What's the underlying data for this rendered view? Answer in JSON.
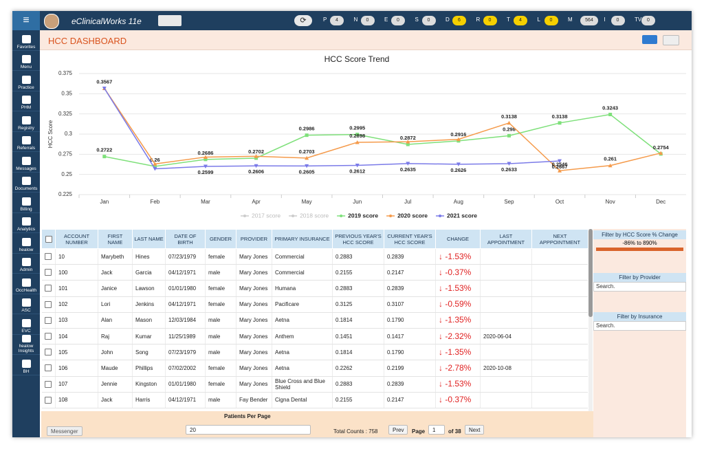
{
  "topbar": {
    "app_name": "eClinicalWorks 11e",
    "counters": [
      {
        "label": "P",
        "count": "4",
        "color": "#dddddd"
      },
      {
        "label": "N",
        "count": "0",
        "color": "#dddddd"
      },
      {
        "label": "E",
        "count": "0",
        "color": "#dddddd"
      },
      {
        "label": "S",
        "count": "0",
        "color": "#dddddd"
      },
      {
        "label": "D",
        "count": "6",
        "color": "#f5d000"
      },
      {
        "label": "R",
        "count": "0",
        "color": "#f5d000"
      },
      {
        "label": "T",
        "count": "4",
        "color": "#f5d000"
      },
      {
        "label": "L",
        "count": "0",
        "color": "#f5d000"
      },
      {
        "label": "M",
        "count": "564",
        "color": "#dddddd"
      },
      {
        "label": "I",
        "count": "0",
        "color": "#dddddd"
      },
      {
        "label": "TV",
        "count": "0",
        "color": "#dddddd"
      }
    ]
  },
  "sidebar": [
    "Favorites",
    "Menu",
    "Practice",
    "PHM",
    "Registry",
    "Referrals",
    "Messages",
    "Documents",
    "Billing",
    "Analytics",
    "healow",
    "Admin",
    "OccHealth",
    "ASC",
    "EVC",
    "healow Insights",
    "BH"
  ],
  "header": {
    "title": "HCC DASHBOARD"
  },
  "chart": {
    "type": "line",
    "title": "HCC Score Trend",
    "y_label": "HCC Score",
    "categories": [
      "Jan",
      "Feb",
      "Mar",
      "Apr",
      "May",
      "Jun",
      "Jul",
      "Aug",
      "Sep",
      "Oct",
      "Nov",
      "Dec"
    ],
    "ylim": [
      0.225,
      0.375
    ],
    "yticks": [
      0.375,
      0.35,
      0.325,
      0.3,
      0.275,
      0.25,
      0.225
    ],
    "series": [
      {
        "name": "2017 score",
        "color": "#cccccc",
        "visible": false,
        "values": [
          null,
          null,
          null,
          null,
          null,
          null,
          null,
          null,
          null,
          null,
          null,
          null
        ]
      },
      {
        "name": "2018 score",
        "color": "#cccccc",
        "visible": false,
        "values": [
          null,
          null,
          null,
          null,
          null,
          null,
          null,
          null,
          null,
          null,
          null,
          null
        ]
      },
      {
        "name": "2019 score",
        "color": "#7ee07a",
        "marker": "square",
        "visible": true,
        "values": [
          0.2722,
          0.26,
          0.2686,
          0.2702,
          0.2986,
          0.2995,
          0.2872,
          0.2916,
          0.298,
          0.3138,
          0.3243,
          0.2754
        ],
        "value_labels": [
          "0.2722",
          "0.26",
          "0.2686",
          "0.2702",
          "0.2986",
          "0.2995",
          "0.2872",
          "0.2916",
          "0.298",
          "0.3138",
          "0.3243",
          "0.2754"
        ]
      },
      {
        "name": "2020 score",
        "color": "#f59a4a",
        "marker": "triangle-up",
        "visible": true,
        "values": [
          0.3567,
          0.263,
          0.2715,
          0.2725,
          0.2703,
          0.2898,
          0.2905,
          0.2935,
          0.3138,
          0.2546,
          0.261,
          0.2765
        ],
        "value_labels": [
          "0.3567",
          null,
          null,
          null,
          "0.2703",
          "0.2898",
          null,
          null,
          "0.3138",
          "0.2546",
          "0.261",
          null
        ]
      },
      {
        "name": "2021 score",
        "color": "#7a7ae8",
        "marker": "triangle-down",
        "visible": true,
        "values": [
          0.3567,
          0.257,
          0.2599,
          0.2606,
          0.2605,
          0.2612,
          0.2635,
          0.2626,
          0.2633,
          0.2667,
          null,
          null
        ],
        "value_labels": [
          null,
          null,
          "0.2599",
          "0.2606",
          "0.2605",
          "0.2612",
          "0.2635",
          "0.2626",
          "0.2633",
          "0.2667",
          null,
          null
        ]
      }
    ]
  },
  "table": {
    "columns": [
      "ACCOUNT NUMBER",
      "FIRST NAME",
      "LAST NAME",
      "DATE OF BIRTH",
      "GENDER",
      "PROVIDER",
      "PRIMARY INSURANCE",
      "PREVIOUS YEAR'S HCC SCORE",
      "CURRENT YEAR'S HCC SCORE",
      "CHANGE",
      "LAST APPOINTMENT",
      "NEXT APPPOINTMENT"
    ],
    "rows": [
      [
        "10",
        "Marybeth",
        "Hines",
        "07/23/1979",
        "female",
        "Mary Jones",
        "Commercial",
        "0.2883",
        "0.2839",
        "↓ -1.53%",
        null,
        null
      ],
      [
        "100",
        "Jack",
        "Garcia",
        "04/12/1971",
        "male",
        "Mary Jones",
        "Commercial",
        "0.2155",
        "0.2147",
        "↓ -0.37%",
        null,
        null
      ],
      [
        "101",
        "Janice",
        "Lawson",
        "01/01/1980",
        "female",
        "Mary Jones",
        "Humana",
        "0.2883",
        "0.2839",
        "↓ -1.53%",
        null,
        null
      ],
      [
        "102",
        "Lori",
        "Jenkins",
        "04/12/1971",
        "female",
        "Mary Jones",
        "Pacificare",
        "0.3125",
        "0.3107",
        "↓ -0.59%",
        null,
        null
      ],
      [
        "103",
        "Alan",
        "Mason",
        "12/03/1984",
        "male",
        "Mary Jones",
        "Aetna",
        "0.1814",
        "0.1790",
        "↓ -1.35%",
        null,
        null
      ],
      [
        "104",
        "Raj",
        "Kumar",
        "11/25/1989",
        "male",
        "Mary Jones",
        "Anthem",
        "0.1451",
        "0.1417",
        "↓ -2.32%",
        "2020-06-04",
        null
      ],
      [
        "105",
        "John",
        "Song",
        "07/23/1979",
        "male",
        "Mary Jones",
        "Aetna",
        "0.1814",
        "0.1790",
        "↓ -1.35%",
        null,
        null
      ],
      [
        "106",
        "Maude",
        "Phillips",
        "07/02/2002",
        "female",
        "Mary Jones",
        "Aetna",
        "0.2262",
        "0.2199",
        "↓ -2.78%",
        "2020-10-08",
        null
      ],
      [
        "107",
        "Jennie",
        "Kingston",
        "01/01/1980",
        "female",
        "Mary Jones",
        "Blue Cross and Blue Shield",
        "0.2883",
        "0.2839",
        "↓ -1.53%",
        null,
        null
      ],
      [
        "108",
        "Jack",
        "Harris",
        "04/12/1971",
        "male",
        "Fay Bender",
        "Cigna Dental",
        "0.2155",
        "0.2147",
        "↓ -0.37%",
        null,
        null
      ]
    ]
  },
  "filters": {
    "score_title": "Filter by HCC Score % Change",
    "score_range": "-86% to 890%",
    "provider_title": "Filter by Provider",
    "provider_search": "Search.",
    "insurance_title": "Filter by Insurance",
    "insurance_search": "Search."
  },
  "footer": {
    "messenger": "Messenger",
    "per_page_label": "Patients Per Page",
    "per_page": "20",
    "total": "Total Counts : 758",
    "prev": "Prev",
    "page_label": "Page",
    "page": "1",
    "of_pages": "of 38",
    "next": "Next"
  }
}
